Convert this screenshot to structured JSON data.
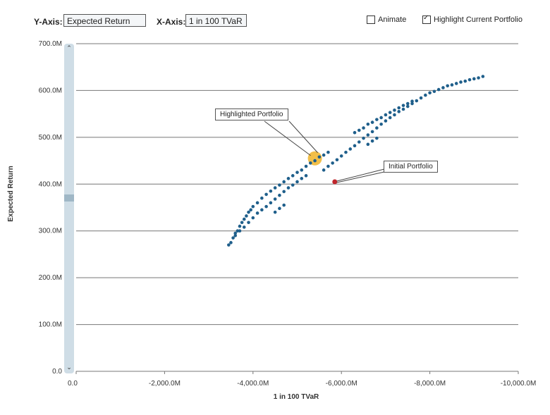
{
  "toolbar": {
    "y_axis_label": "Y-Axis:",
    "y_axis_value": "Expected Return",
    "x_axis_label": "X-Axis:",
    "x_axis_value": "1 in 100 TVaR",
    "animate_label": "Animate",
    "animate_checked": false,
    "highlight_label": "Highlight Current Portfolio",
    "highlight_checked": true
  },
  "chart_data": {
    "type": "scatter",
    "xlabel": "1 in 100 TVaR",
    "ylabel": "Expected Return",
    "x_ticks": [
      "0.0",
      "-2,000.0M",
      "-4,000.0M",
      "-6,000.0M",
      "-8,000.0M",
      "-10,000.0M"
    ],
    "y_ticks": [
      "0.0",
      "100.0M",
      "200.0M",
      "300.0M",
      "400.0M",
      "500.0M",
      "600.0M",
      "700.0M"
    ],
    "xlim": [
      0,
      -10000
    ],
    "ylim": [
      0,
      700
    ],
    "grid": "horizontal",
    "colors": {
      "points": "#1f5f8b",
      "initial": "#c0262c",
      "highlight": "#f0b429"
    },
    "series": [
      {
        "name": "Portfolios",
        "points": [
          [
            -3450,
            270
          ],
          [
            -3500,
            275
          ],
          [
            -3550,
            285
          ],
          [
            -3600,
            295
          ],
          [
            -3650,
            300
          ],
          [
            -3700,
            310
          ],
          [
            -3750,
            318
          ],
          [
            -3800,
            325
          ],
          [
            -3850,
            332
          ],
          [
            -3900,
            340
          ],
          [
            -3950,
            345
          ],
          [
            -4000,
            352
          ],
          [
            -4100,
            360
          ],
          [
            -4200,
            370
          ],
          [
            -4300,
            378
          ],
          [
            -4400,
            385
          ],
          [
            -4500,
            392
          ],
          [
            -4600,
            398
          ],
          [
            -4700,
            405
          ],
          [
            -4800,
            412
          ],
          [
            -4900,
            418
          ],
          [
            -5000,
            425
          ],
          [
            -5100,
            430
          ],
          [
            -5200,
            438
          ],
          [
            -5300,
            445
          ],
          [
            -5400,
            450
          ],
          [
            -5500,
            458
          ],
          [
            -5600,
            462
          ],
          [
            -5700,
            468
          ],
          [
            -3600,
            290
          ],
          [
            -3700,
            300
          ],
          [
            -3800,
            308
          ],
          [
            -3900,
            318
          ],
          [
            -4000,
            328
          ],
          [
            -4100,
            338
          ],
          [
            -4200,
            345
          ],
          [
            -4300,
            352
          ],
          [
            -4400,
            360
          ],
          [
            -4500,
            368
          ],
          [
            -4600,
            376
          ],
          [
            -4700,
            384
          ],
          [
            -4800,
            392
          ],
          [
            -4900,
            398
          ],
          [
            -5000,
            405
          ],
          [
            -5100,
            412
          ],
          [
            -5200,
            418
          ],
          [
            -4500,
            340
          ],
          [
            -4600,
            348
          ],
          [
            -4700,
            355
          ],
          [
            -5600,
            430
          ],
          [
            -5700,
            438
          ],
          [
            -5800,
            445
          ],
          [
            -5900,
            452
          ],
          [
            -6000,
            460
          ],
          [
            -6100,
            468
          ],
          [
            -6200,
            475
          ],
          [
            -6300,
            482
          ],
          [
            -6400,
            490
          ],
          [
            -6500,
            498
          ],
          [
            -6600,
            505
          ],
          [
            -6700,
            512
          ],
          [
            -6800,
            520
          ],
          [
            -6900,
            528
          ],
          [
            -7000,
            535
          ],
          [
            -7100,
            542
          ],
          [
            -7200,
            548
          ],
          [
            -7300,
            555
          ],
          [
            -7400,
            560
          ],
          [
            -7500,
            566
          ],
          [
            -7600,
            572
          ],
          [
            -7700,
            578
          ],
          [
            -7800,
            584
          ],
          [
            -7900,
            590
          ],
          [
            -8000,
            595
          ],
          [
            -8100,
            598
          ],
          [
            -8200,
            602
          ],
          [
            -8300,
            606
          ],
          [
            -8400,
            610
          ],
          [
            -8500,
            612
          ],
          [
            -8600,
            615
          ],
          [
            -8700,
            618
          ],
          [
            -8800,
            620
          ],
          [
            -8900,
            623
          ],
          [
            -9000,
            625
          ],
          [
            -9100,
            627
          ],
          [
            -9200,
            630
          ],
          [
            -6500,
            520
          ],
          [
            -6600,
            528
          ],
          [
            -6700,
            532
          ],
          [
            -6800,
            538
          ],
          [
            -6900,
            542
          ],
          [
            -7000,
            548
          ],
          [
            -7100,
            553
          ],
          [
            -7200,
            558
          ],
          [
            -7300,
            563
          ],
          [
            -7400,
            568
          ],
          [
            -7500,
            572
          ],
          [
            -7600,
            577
          ],
          [
            -6300,
            510
          ],
          [
            -6400,
            515
          ],
          [
            -6600,
            485
          ],
          [
            -6700,
            492
          ],
          [
            -6800,
            498
          ]
        ]
      }
    ],
    "initial_portfolio": {
      "label": "Initial Portfolio",
      "x": -5850,
      "y": 405
    },
    "highlighted_portfolio": {
      "label": "Highlighted Portfolio",
      "x": -5400,
      "y": 455
    }
  }
}
